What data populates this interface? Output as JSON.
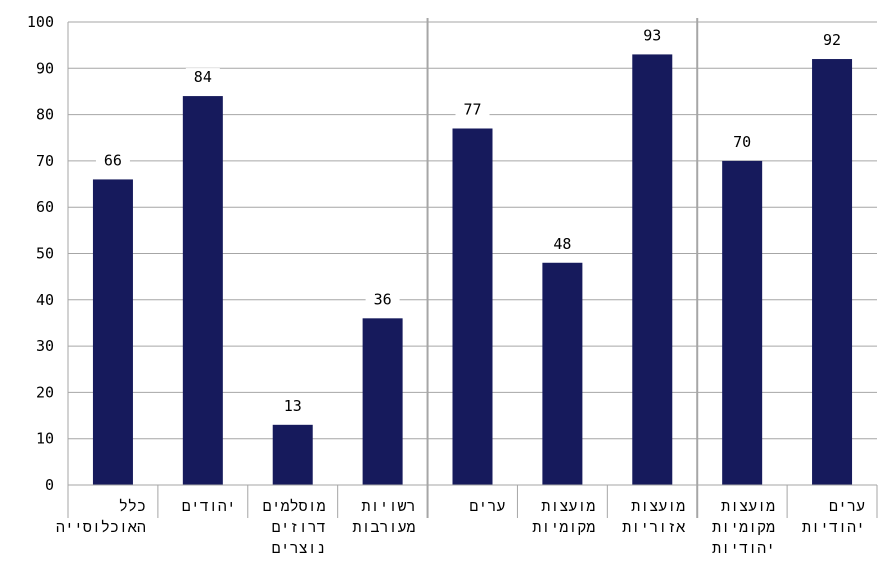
{
  "chart_data": {
    "type": "bar",
    "title": "",
    "xlabel": "",
    "ylabel": "",
    "ylim": [
      0,
      100
    ],
    "yticks": [
      0,
      10,
      20,
      30,
      40,
      50,
      60,
      70,
      80,
      90,
      100
    ],
    "grid": "horizontal",
    "legend": "none",
    "bar_color": "#161a5c",
    "categories": [
      {
        "lines": [
          "כלל",
          "האוכלוסייה"
        ],
        "value": 66,
        "group": 0
      },
      {
        "lines": [
          "יהודים"
        ],
        "value": 84,
        "group": 0
      },
      {
        "lines": [
          "מוסלמים",
          "דרוזים",
          "נוצרים"
        ],
        "value": 13,
        "group": 0
      },
      {
        "lines": [
          "רשויות",
          "מעורבות"
        ],
        "value": 36,
        "group": 0
      },
      {
        "lines": [
          "ערים"
        ],
        "value": 77,
        "group": 1
      },
      {
        "lines": [
          "מועצות",
          "מקומיות"
        ],
        "value": 48,
        "group": 1
      },
      {
        "lines": [
          "מועצות",
          "אזוריות"
        ],
        "value": 93,
        "group": 1
      },
      {
        "lines": [
          "מועצות",
          "מקומיות",
          "יהודיות"
        ],
        "value": 70,
        "group": 2
      },
      {
        "lines": [
          "ערים",
          "יהודיות"
        ],
        "value": 92,
        "group": 2
      }
    ]
  }
}
